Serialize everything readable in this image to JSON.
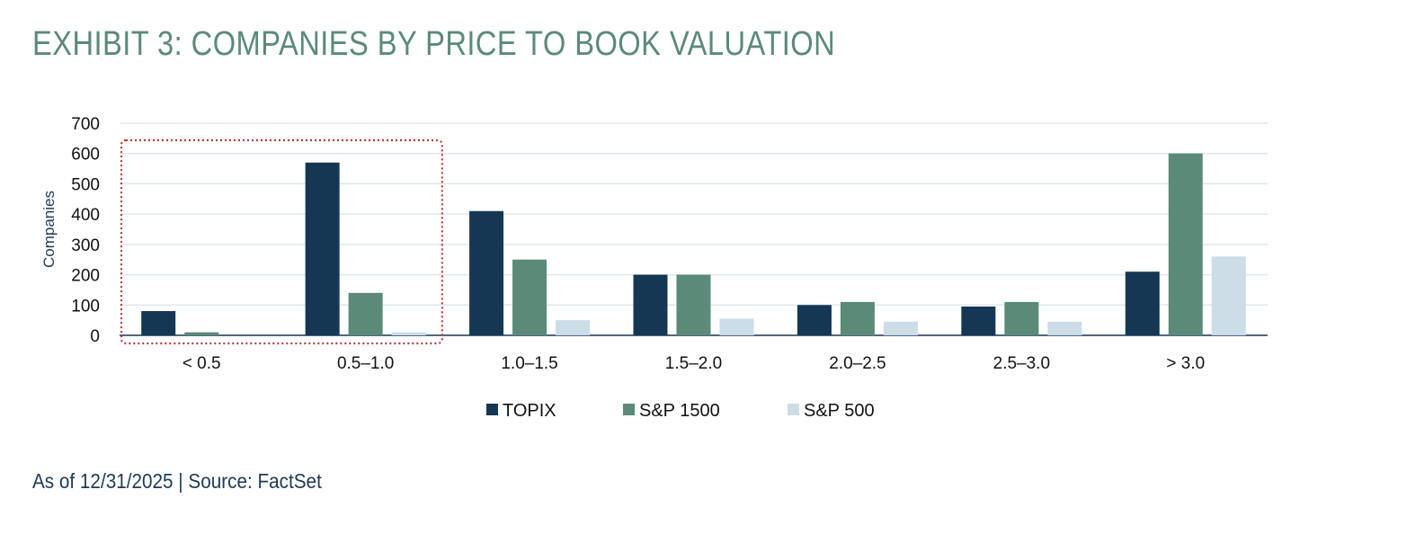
{
  "title": "EXHIBIT 3: COMPANIES BY PRICE TO BOOK VALUATION",
  "source": "As of 12/31/2025 | Source: FactSet",
  "chart_data": {
    "type": "bar",
    "ylabel": "Companies",
    "ylim": [
      0,
      700
    ],
    "yticks": [
      0,
      100,
      200,
      300,
      400,
      500,
      600,
      700
    ],
    "categories": [
      "< 0.5",
      "0.5–1.0",
      "1.0–1.5",
      "1.5–2.0",
      "2.0–2.5",
      "2.5–3.0",
      "> 3.0"
    ],
    "series": [
      {
        "name": "TOPIX",
        "color": "#163754",
        "values": [
          80,
          570,
          410,
          200,
          100,
          95,
          210
        ]
      },
      {
        "name": "S&P 1500",
        "color": "#5b8a78",
        "values": [
          10,
          140,
          250,
          200,
          110,
          110,
          600
        ]
      },
      {
        "name": "S&P 500",
        "color": "#ccdde8",
        "values": [
          0,
          10,
          50,
          55,
          45,
          45,
          260
        ]
      }
    ],
    "grid": true,
    "legend": "bottom",
    "highlight_categories": [
      "< 0.5",
      "0.5–1.0"
    ],
    "highlight_color": "#b83a3a"
  }
}
